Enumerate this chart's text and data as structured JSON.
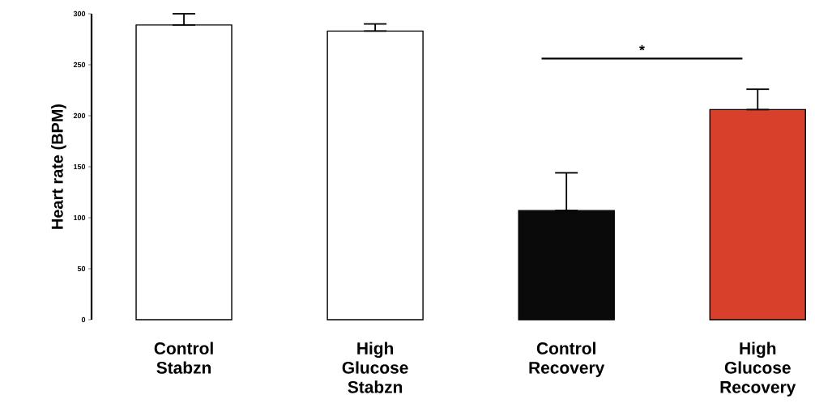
{
  "chart_data": {
    "type": "bar",
    "categories": [
      "Control Stabzn",
      "High Glucose Stabzn",
      "Control Recovery",
      "High Glucose Recovery"
    ],
    "values": [
      289,
      283,
      107,
      206
    ],
    "colors": [
      "#ffffff",
      "#ffffff",
      "#0a0a0a",
      "#d9402c"
    ],
    "errors": [
      [
        289,
        300
      ],
      [
        283,
        290
      ],
      [
        107,
        144
      ],
      [
        206,
        226
      ]
    ],
    "ylabel": "Heart rate (BPM)",
    "ylim": [
      0,
      300
    ],
    "yticks": [
      0,
      50,
      100,
      150,
      200,
      250,
      300
    ],
    "annotations": [
      "*"
    ]
  }
}
